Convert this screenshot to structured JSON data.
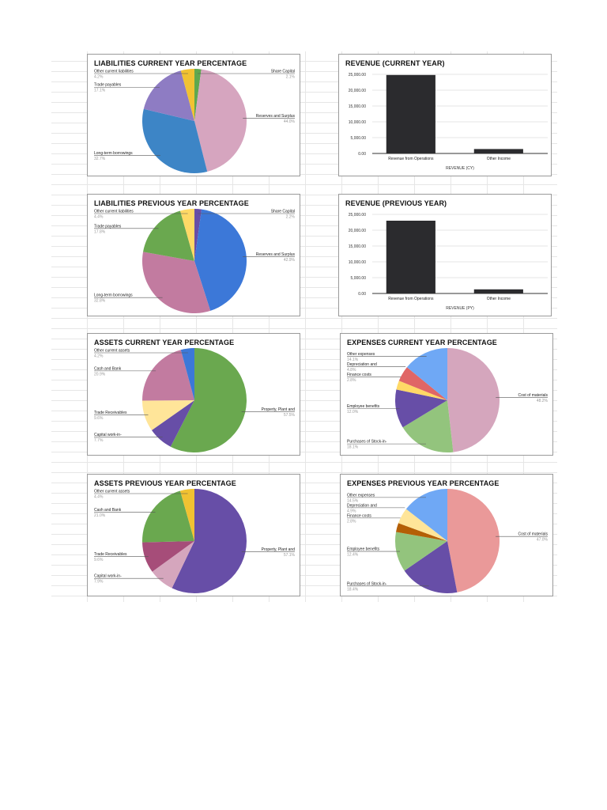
{
  "chart_data": [
    {
      "id": "liab-cy",
      "type": "pie",
      "title": "LIABILITIES CURRENT YEAR PERCENTAGE",
      "slices": [
        {
          "label": "Share Capital",
          "value": 2.1,
          "pct": "2.1%",
          "color": "#5fa84f"
        },
        {
          "label": "Reserves and Surplus",
          "value": 44.0,
          "pct": "44.0%",
          "color": "#d6a5bf"
        },
        {
          "label": "Long-term borrowings",
          "value": 32.7,
          "pct": "32.7%",
          "color": "#3d85c6"
        },
        {
          "label": "Trade payables",
          "value": 17.1,
          "pct": "17.1%",
          "color": "#8e7cc3"
        },
        {
          "label": "Other current liabilities",
          "value": 4.2,
          "pct": "4.2%",
          "color": "#f1c232"
        }
      ]
    },
    {
      "id": "rev-cy",
      "type": "bar",
      "title": "REVENUE (CURRENT YEAR)",
      "xlabel": "REVENUE (CY)",
      "categories": [
        "Revenue from Operations",
        "Other Income"
      ],
      "values": [
        24800,
        1400
      ],
      "ylim": [
        0,
        25000
      ],
      "yticks": [
        "0.00",
        "5,000.00",
        "10,000.00",
        "15,000.00",
        "20,000.00",
        "25,000.00"
      ],
      "color": "#2b2b2e",
      "grid": true
    },
    {
      "id": "liab-py",
      "type": "pie",
      "title": "LIABILITIES PREVIOUS YEAR PERCENTAGE",
      "slices": [
        {
          "label": "Share Capital",
          "value": 2.2,
          "pct": "2.2%",
          "color": "#674ea7"
        },
        {
          "label": "Reserves and Surplus",
          "value": 42.9,
          "pct": "42.9%",
          "color": "#3c78d8"
        },
        {
          "label": "Long-term borrowings",
          "value": 32.8,
          "pct": "32.8%",
          "color": "#c27ba0"
        },
        {
          "label": "Trade payables",
          "value": 17.8,
          "pct": "17.8%",
          "color": "#6aa84f"
        },
        {
          "label": "Other current liabilities",
          "value": 4.4,
          "pct": "4.4%",
          "color": "#ffd966"
        }
      ]
    },
    {
      "id": "rev-py",
      "type": "bar",
      "title": "REVENUE (PREVIOUS YEAR)",
      "xlabel": "REVENUE (PY)",
      "categories": [
        "Revenue from Operations",
        "Other Income"
      ],
      "values": [
        23000,
        1300
      ],
      "ylim": [
        0,
        25000
      ],
      "yticks": [
        "0.00",
        "5,000.00",
        "10,000.00",
        "15,000.00",
        "20,000.00",
        "25,000.00"
      ],
      "color": "#2b2b2e",
      "grid": true
    },
    {
      "id": "assets-cy",
      "type": "pie",
      "title": "ASSETS CURRENT YEAR PERCENTAGE",
      "slices": [
        {
          "label": "Property, Plant and",
          "value": 57.5,
          "pct": "57.5%",
          "color": "#6aa84f"
        },
        {
          "label": "Capital work-in-",
          "value": 7.7,
          "pct": "7.7%",
          "color": "#674ea7"
        },
        {
          "label": "Trade Receivables",
          "value": 9.6,
          "pct": "9.6%",
          "color": "#ffe599"
        },
        {
          "label": "Cash and Bank",
          "value": 20.9,
          "pct": "20.9%",
          "color": "#c27ba0"
        },
        {
          "label": "Other current assets",
          "value": 4.2,
          "pct": "4.2%",
          "color": "#3c78d8"
        }
      ]
    },
    {
      "id": "exp-cy",
      "type": "pie",
      "title": "EXPENSES CURRENT YEAR PERCENTAGE",
      "slices": [
        {
          "label": "Cost of materials",
          "value": 48.2,
          "pct": "48.2%",
          "color": "#d5a6bd"
        },
        {
          "label": "Purchases of Stock-in-",
          "value": 18.1,
          "pct": "18.1%",
          "color": "#93c47d"
        },
        {
          "label": "Employee benefits",
          "value": 12.0,
          "pct": "12.0%",
          "color": "#674ea7"
        },
        {
          "label": "Finance costs",
          "value": 2.8,
          "pct": "2.8%",
          "color": "#ffd966"
        },
        {
          "label": "Depreciation and",
          "value": 4.8,
          "pct": "4.8%",
          "color": "#e06666"
        },
        {
          "label": "Other expenses",
          "value": 14.1,
          "pct": "14.1%",
          "color": "#6fa8f5"
        }
      ]
    },
    {
      "id": "assets-py",
      "type": "pie",
      "title": "ASSETS PREVIOUS YEAR PERCENTAGE",
      "slices": [
        {
          "label": "Property, Plant and",
          "value": 57.1,
          "pct": "57.1%",
          "color": "#674ea7"
        },
        {
          "label": "Capital work-in-",
          "value": 7.9,
          "pct": "7.9%",
          "color": "#d5a6bd"
        },
        {
          "label": "Trade Receivables",
          "value": 9.6,
          "pct": "9.6%",
          "color": "#a64d79"
        },
        {
          "label": "Cash and Bank",
          "value": 21.0,
          "pct": "21.0%",
          "color": "#6aa84f"
        },
        {
          "label": "Other current assets",
          "value": 4.4,
          "pct": "4.4%",
          "color": "#f1c232"
        }
      ]
    },
    {
      "id": "exp-py",
      "type": "pie",
      "title": "EXPENSES PREVIOUS YEAR PERCENTAGE",
      "slices": [
        {
          "label": "Cost of materials",
          "value": 47.0,
          "pct": "47.0%",
          "color": "#ea9999"
        },
        {
          "label": "Purchases of Stock-in-",
          "value": 18.4,
          "pct": "18.4%",
          "color": "#674ea7"
        },
        {
          "label": "Employee benefits",
          "value": 12.4,
          "pct": "12.4%",
          "color": "#93c47d"
        },
        {
          "label": "Finance costs",
          "value": 2.8,
          "pct": "2.8%",
          "color": "#b45f06"
        },
        {
          "label": "Depreciation and",
          "value": 4.9,
          "pct": "4.9%",
          "color": "#ffe599"
        },
        {
          "label": "Other expenses",
          "value": 14.5,
          "pct": "14.5%",
          "color": "#6fa8f5"
        }
      ]
    }
  ]
}
